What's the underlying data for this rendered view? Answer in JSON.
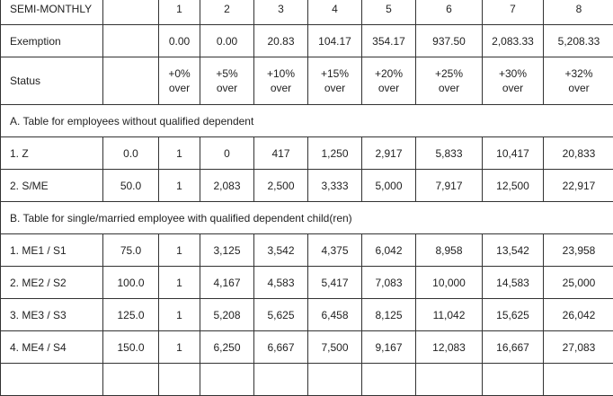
{
  "header": {
    "label": "SEMI-MONTHLY",
    "brackets": [
      "1",
      "2",
      "3",
      "4",
      "5",
      "6",
      "7",
      "8"
    ]
  },
  "exemption": {
    "label": "Exemption",
    "values": [
      "0.00",
      "0.00",
      "20.83",
      "104.17",
      "354.17",
      "937.50",
      "2,083.33",
      "5,208.33"
    ]
  },
  "status": {
    "label": "Status",
    "rates": [
      "+0%",
      "+5%",
      "+10%",
      "+15%",
      "+20%",
      "+25%",
      "+30%",
      "+32%"
    ],
    "suffix": "over"
  },
  "sections": [
    {
      "title": "A. Table for employees without qualified dependent",
      "rows": [
        {
          "label": "1. Z",
          "exemption": "0.0",
          "values": [
            "1",
            "0",
            "417",
            "1,250",
            "2,917",
            "5,833",
            "10,417",
            "20,833"
          ]
        },
        {
          "label": "2. S/ME",
          "exemption": "50.0",
          "values": [
            "1",
            "2,083",
            "2,500",
            "3,333",
            "5,000",
            "7,917",
            "12,500",
            "22,917"
          ]
        }
      ]
    },
    {
      "title": "B. Table for single/married employee with qualified dependent child(ren)",
      "rows": [
        {
          "label": "1. ME1 / S1",
          "exemption": "75.0",
          "values": [
            "1",
            "3,125",
            "3,542",
            "4,375",
            "6,042",
            "8,958",
            "13,542",
            "23,958"
          ]
        },
        {
          "label": "2. ME2 / S2",
          "exemption": "100.0",
          "values": [
            "1",
            "4,167",
            "4,583",
            "5,417",
            "7,083",
            "10,000",
            "14,583",
            "25,000"
          ]
        },
        {
          "label": "3. ME3 / S3",
          "exemption": "125.0",
          "values": [
            "1",
            "5,208",
            "5,625",
            "6,458",
            "8,125",
            "11,042",
            "15,625",
            "26,042"
          ]
        },
        {
          "label": "4. ME4 / S4",
          "exemption": "150.0",
          "values": [
            "1",
            "6,250",
            "6,667",
            "7,500",
            "9,167",
            "12,083",
            "16,667",
            "27,083"
          ]
        }
      ]
    }
  ]
}
